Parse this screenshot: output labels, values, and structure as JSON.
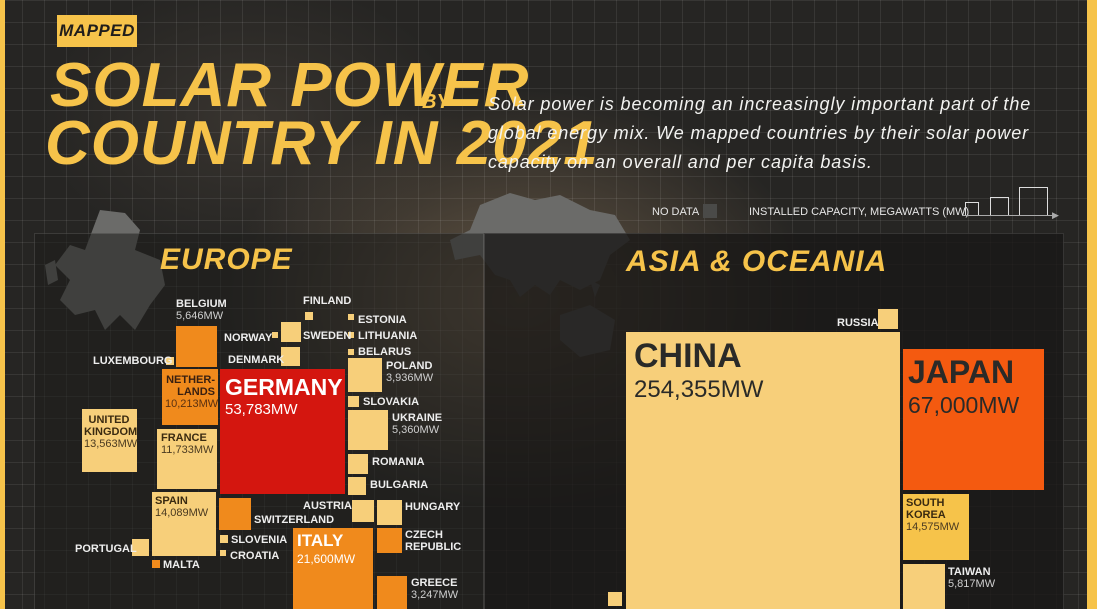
{
  "badge": "MAPPED",
  "title": {
    "line1": "SOLAR POWER",
    "by": "BY",
    "line2": "COUNTRY IN 2021"
  },
  "intro": "Solar power is becoming an increasingly important part of the global energy mix. We mapped countries by their solar power capacity on an overall and per capita basis.",
  "legend": {
    "no_data": "NO DATA",
    "capacity": "INSTALLED CAPACITY, MEGAWATTS (MW)"
  },
  "colors": {
    "accent": "#f6c34a",
    "light": "#f7cf7a",
    "orange": "#f08a1c",
    "deep": "#f45a10",
    "red": "#d4160f"
  },
  "regions": {
    "europe": "EUROPE",
    "asia": "ASIA & OCEANIA"
  },
  "europe": {
    "belgium": {
      "name": "BELGIUM",
      "value": "5,646MW"
    },
    "finland": {
      "name": "FINLAND"
    },
    "estonia": {
      "name": "ESTONIA"
    },
    "norway": {
      "name": "NORWAY"
    },
    "sweden": {
      "name": "SWEDEN"
    },
    "lithuania": {
      "name": "LITHUANIA"
    },
    "belarus": {
      "name": "BELARUS"
    },
    "luxembourg": {
      "name": "LUXEMBOURG"
    },
    "denmark": {
      "name": "DENMARK"
    },
    "poland": {
      "name": "POLAND",
      "value": "3,936MW"
    },
    "netherlands": {
      "name": "NETHER-\nLANDS",
      "value": "10,213MW"
    },
    "germany": {
      "name": "GERMANY",
      "value": "53,783MW"
    },
    "slovakia": {
      "name": "SLOVAKIA"
    },
    "uk": {
      "name": "UNITED\nKINGDOM",
      "value": "13,563MW"
    },
    "france": {
      "name": "FRANCE",
      "value": "11,733MW"
    },
    "ukraine": {
      "name": "UKRAINE",
      "value": "5,360MW"
    },
    "romania": {
      "name": "ROMANIA"
    },
    "bulgaria": {
      "name": "BULGARIA"
    },
    "spain": {
      "name": "SPAIN",
      "value": "14,089MW"
    },
    "austria": {
      "name": "AUSTRIA"
    },
    "hungary": {
      "name": "HUNGARY"
    },
    "switzerland": {
      "name": "SWITZERLAND"
    },
    "slovenia": {
      "name": "SLOVENIA"
    },
    "croatia": {
      "name": "CROATIA"
    },
    "czech": {
      "name": "CZECH\nREPUBLIC"
    },
    "portugal": {
      "name": "PORTUGAL"
    },
    "malta": {
      "name": "MALTA"
    },
    "italy": {
      "name": "ITALY",
      "value": "21,600MW"
    },
    "greece": {
      "name": "GREECE",
      "value": "3,247MW"
    }
  },
  "asia": {
    "russia": {
      "name": "RUSSIA"
    },
    "china": {
      "name": "CHINA",
      "value": "254,355MW"
    },
    "japan": {
      "name": "JAPAN",
      "value": "67,000MW"
    },
    "south_korea": {
      "name": "SOUTH\nKOREA",
      "value": "14,575MW"
    },
    "taiwan": {
      "name": "TAIWAN",
      "value": "5,817MW"
    }
  }
}
